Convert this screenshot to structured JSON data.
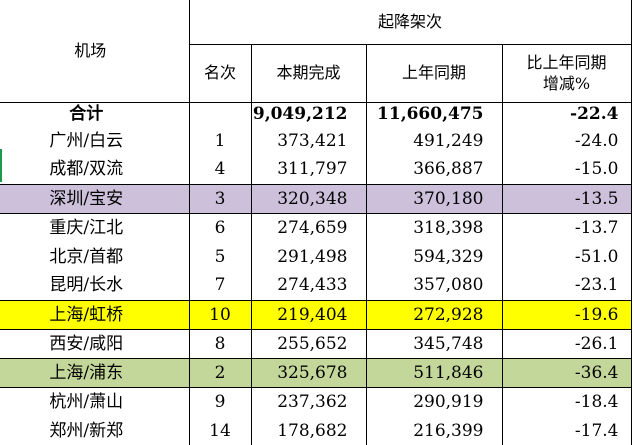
{
  "header": {
    "airport": "机场",
    "group": "起降架次",
    "rank": "名次",
    "current": "本期完成",
    "last_year": "上年同期",
    "change_line1": "比上年同期",
    "change_line2": "增减%"
  },
  "total": {
    "airport": "合计",
    "rank": "",
    "current": "9,049,212",
    "last_year": "11,660,475",
    "change": "-22.4"
  },
  "rows": [
    {
      "airport": "广州/白云",
      "rank": "1",
      "current": "373,421",
      "last_year": "491,249",
      "change": "-24.0"
    },
    {
      "airport": "成都/双流",
      "rank": "4",
      "current": "311,797",
      "last_year": "366,887",
      "change": "-15.0"
    },
    {
      "airport": "深圳/宝安",
      "rank": "3",
      "current": "320,348",
      "last_year": "370,180",
      "change": "-13.5",
      "highlight": "#ccc0da"
    },
    {
      "airport": "重庆/江北",
      "rank": "6",
      "current": "274,659",
      "last_year": "318,398",
      "change": "-13.7"
    },
    {
      "airport": "北京/首都",
      "rank": "5",
      "current": "291,498",
      "last_year": "594,329",
      "change": "-51.0"
    },
    {
      "airport": "昆明/长水",
      "rank": "7",
      "current": "274,433",
      "last_year": "357,080",
      "change": "-23.1"
    },
    {
      "airport": "上海/虹桥",
      "rank": "10",
      "current": "219,404",
      "last_year": "272,928",
      "change": "-19.6",
      "highlight": "#ffff00"
    },
    {
      "airport": "西安/咸阳",
      "rank": "8",
      "current": "255,652",
      "last_year": "345,748",
      "change": "-26.1"
    },
    {
      "airport": "上海/浦东",
      "rank": "2",
      "current": "325,678",
      "last_year": "511,846",
      "change": "-36.4",
      "highlight": "#c4d79b"
    },
    {
      "airport": "杭州/萧山",
      "rank": "9",
      "current": "237,362",
      "last_year": "290,919",
      "change": "-18.4"
    },
    {
      "airport": "郑州/新郑",
      "rank": "14",
      "current": "178,682",
      "last_year": "216,399",
      "change": "-17.4"
    }
  ]
}
